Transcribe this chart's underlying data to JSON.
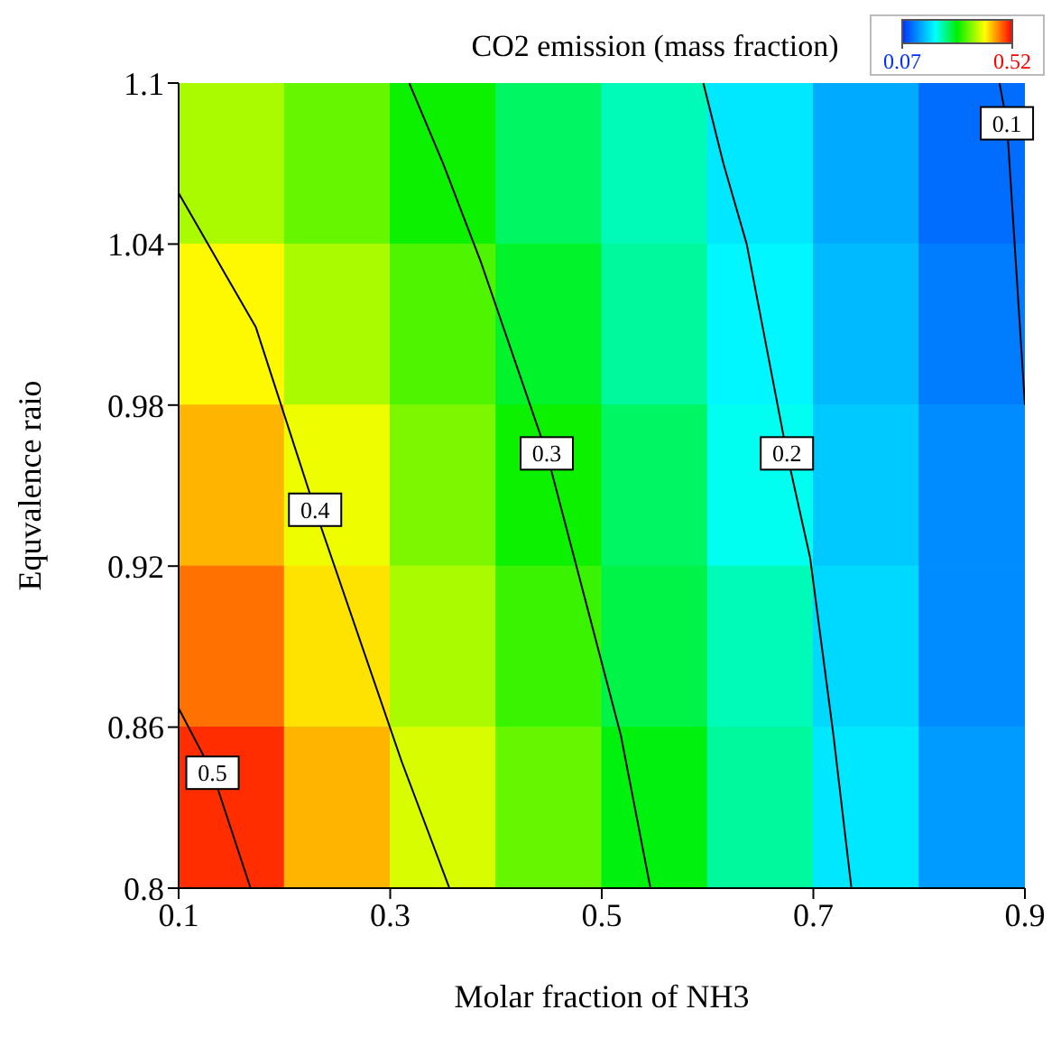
{
  "chart_data": {
    "type": "heatmap",
    "title": "CO2 emission (mass fraction)",
    "xlabel": "Molar fraction of NH3",
    "ylabel": "Equvalence raio",
    "xlim": [
      0.1,
      0.9
    ],
    "xticks": [
      0.1,
      0.3,
      0.5,
      0.7,
      0.9
    ],
    "ylim": [
      0.8,
      1.1
    ],
    "yticks": [
      0.8,
      0.86,
      0.92,
      0.98,
      1.04,
      1.1
    ],
    "cells": [
      [
        0.37,
        0.34,
        0.3,
        0.26,
        0.23,
        0.19,
        0.15,
        0.11
      ],
      [
        0.41,
        0.37,
        0.33,
        0.28,
        0.24,
        0.2,
        0.16,
        0.12
      ],
      [
        0.44,
        0.4,
        0.35,
        0.3,
        0.26,
        0.21,
        0.17,
        0.13
      ],
      [
        0.47,
        0.42,
        0.37,
        0.32,
        0.27,
        0.23,
        0.18,
        0.13
      ],
      [
        0.5,
        0.44,
        0.39,
        0.34,
        0.29,
        0.24,
        0.19,
        0.14
      ]
    ],
    "clim": [
      0.07,
      0.52
    ],
    "cticks": [
      0.07,
      0.52
    ],
    "grid": false,
    "legend": false,
    "marker": "none",
    "series": [
      {
        "type": "line",
        "name": "0.5",
        "color": "#000000",
        "x": [
          0.1,
          0.132,
          0.168
        ],
        "values": [
          0.867,
          0.843,
          0.8
        ]
      },
      {
        "type": "line",
        "name": "0.4",
        "color": "#000000",
        "x": [
          0.1,
          0.173,
          0.229,
          0.311,
          0.356
        ],
        "values": [
          1.059,
          1.009,
          0.941,
          0.847,
          0.8
        ]
      },
      {
        "type": "line",
        "name": "0.3",
        "color": "#000000",
        "x": [
          0.318,
          0.35,
          0.386,
          0.448,
          0.474,
          0.518,
          0.546
        ],
        "values": [
          1.1,
          1.07,
          1.033,
          0.962,
          0.923,
          0.857,
          0.8
        ]
      },
      {
        "type": "line",
        "name": "0.2",
        "color": "#000000",
        "x": [
          0.596,
          0.615,
          0.637,
          0.675,
          0.697,
          0.719,
          0.736
        ],
        "values": [
          1.1,
          1.07,
          1.04,
          0.962,
          0.923,
          0.857,
          0.8
        ]
      },
      {
        "type": "line",
        "name": "0.1",
        "color": "#000000",
        "x": [
          0.876,
          0.883,
          0.9
        ],
        "values": [
          1.1,
          1.085,
          0.98
        ]
      }
    ]
  }
}
